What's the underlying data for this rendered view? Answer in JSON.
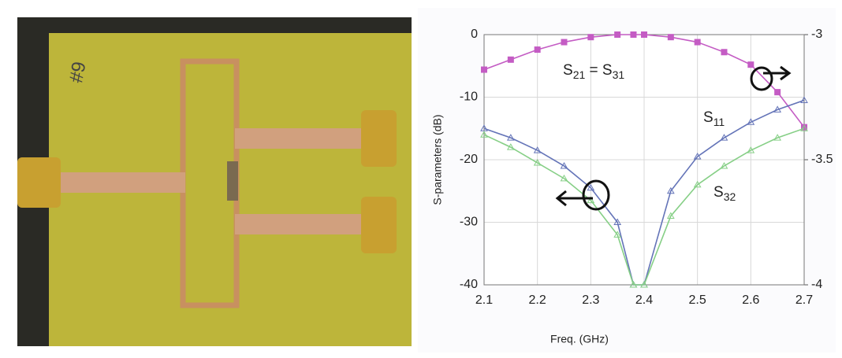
{
  "photo": {
    "label": "#9"
  },
  "chart_data": {
    "type": "line",
    "x_label": "Freq. (GHz)",
    "y_label": "S-parameters (dB)",
    "x": [
      2.1,
      2.15,
      2.2,
      2.25,
      2.3,
      2.35,
      2.38,
      2.4,
      2.45,
      2.5,
      2.55,
      2.6,
      2.65,
      2.7
    ],
    "xlim": [
      2.1,
      2.7
    ],
    "xticks": [
      2.1,
      2.2,
      2.3,
      2.4,
      2.5,
      2.6,
      2.7
    ],
    "ylim": [
      -40,
      0
    ],
    "yticks": [
      0,
      -10,
      -20,
      -30,
      -40
    ],
    "y2lim": [
      -4,
      -3
    ],
    "y2ticks": [
      -3,
      -3.5,
      -4
    ],
    "grid": true,
    "series": [
      {
        "name": "S21 = S31",
        "color": "#c45cc4",
        "axis": "y2",
        "marker": "square",
        "values": [
          -3.14,
          -3.1,
          -3.06,
          -3.03,
          -3.01,
          -3.0,
          -3.0,
          -3.0,
          -3.01,
          -3.03,
          -3.07,
          -3.12,
          -3.23,
          -3.37
        ]
      },
      {
        "name": "S11",
        "color": "#6474b8",
        "marker": "triangle",
        "values": [
          -15,
          -16.5,
          -18.5,
          -21,
          -24.5,
          -30,
          -40,
          -40,
          -25,
          -19.5,
          -16.5,
          -14,
          -12,
          -10.5
        ]
      },
      {
        "name": "S32",
        "color": "#86cf86",
        "marker": "triangle",
        "values": [
          -16,
          -18,
          -20.5,
          -23,
          -26.5,
          -32,
          -40,
          -40,
          -29,
          -24,
          -21,
          -18.5,
          -16.5,
          -15
        ]
      }
    ]
  }
}
